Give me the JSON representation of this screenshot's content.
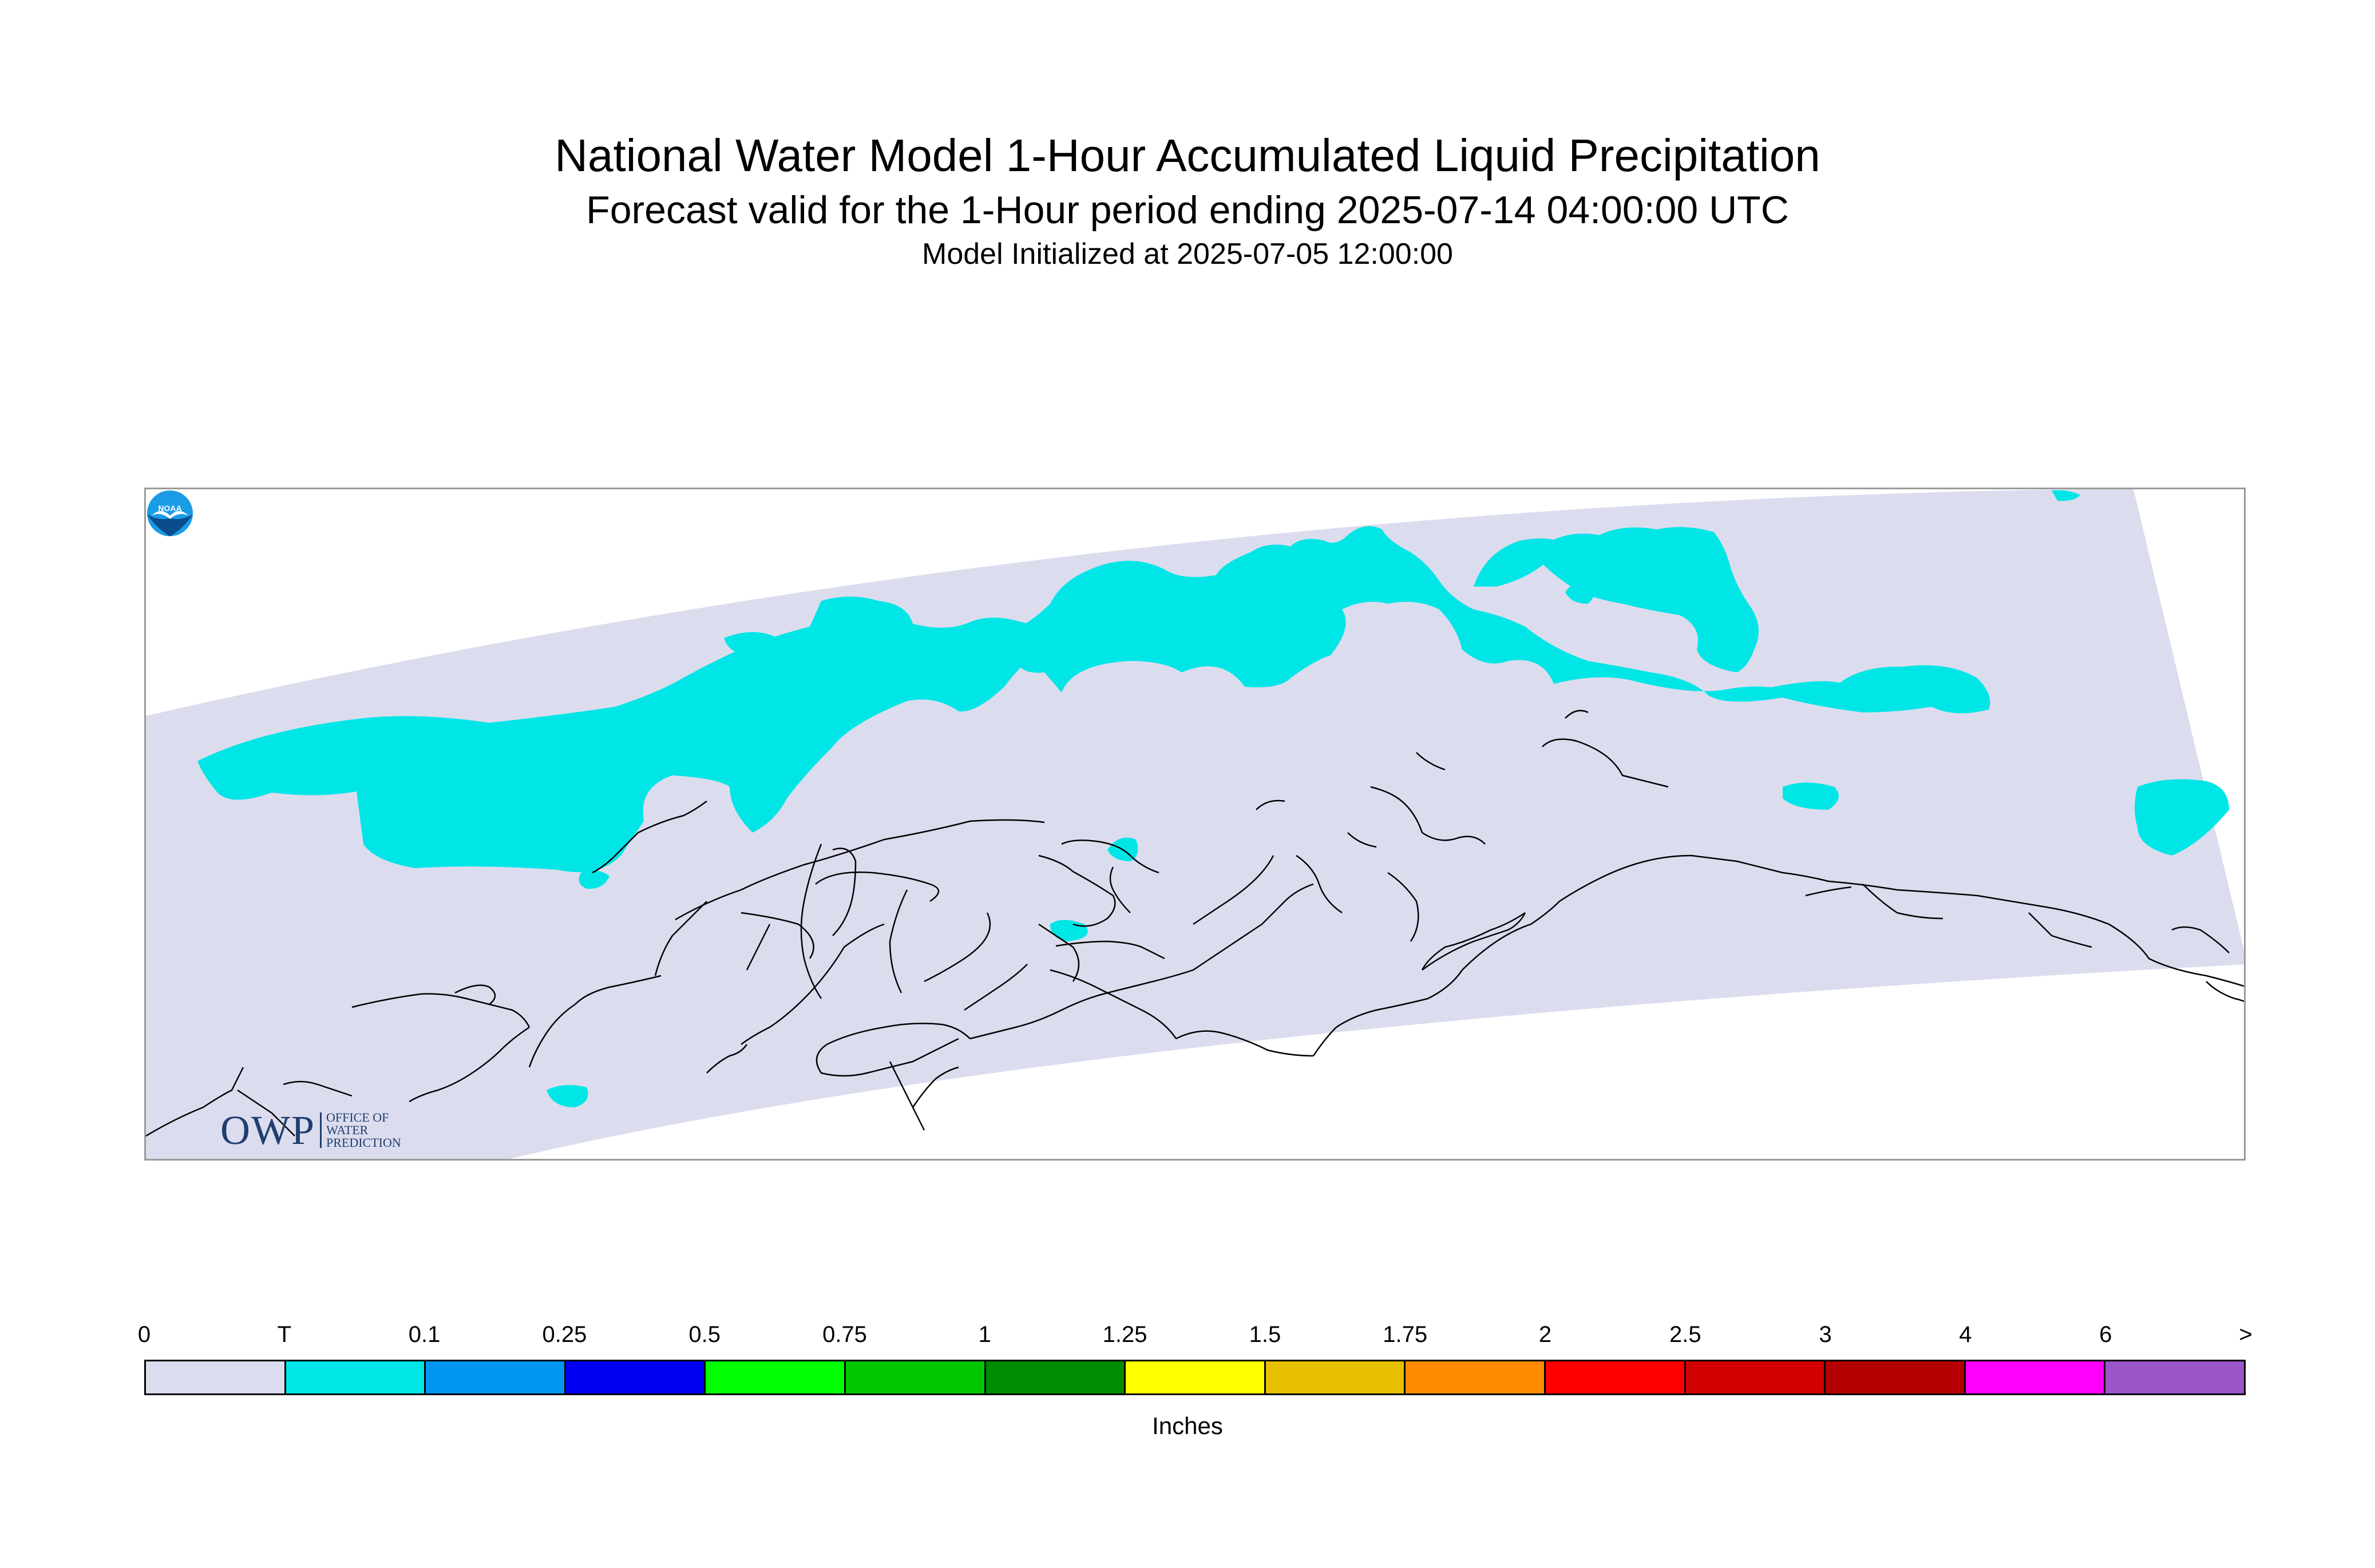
{
  "title": "National Water Model 1-Hour Accumulated Liquid Precipitation",
  "subtitle": "Forecast valid for the 1-Hour period ending 2025-07-14 04:00:00 UTC",
  "init_line": "Model Initialized at 2025-07-05 12:00:00",
  "map": {
    "region": "Alaska",
    "domain_color": "#dcdcef",
    "precip_color": "#00e6e6",
    "coastline_color": "#000000"
  },
  "logos": {
    "owp_big": "OWP",
    "owp_small": [
      "OFFICE OF",
      "WATER",
      "PREDICTION"
    ],
    "noaa": "NOAA"
  },
  "legend": {
    "units": "Inches",
    "ticks": [
      "0",
      "T",
      "0.1",
      "0.25",
      "0.5",
      "0.75",
      "1",
      "1.25",
      "1.5",
      "1.75",
      "2",
      "2.5",
      "3",
      "4",
      "6",
      ">"
    ],
    "colors": [
      "#dcdcef",
      "#00e6e6",
      "#0096f0",
      "#0000f0",
      "#00ff00",
      "#00c800",
      "#008c00",
      "#ffff00",
      "#e6c000",
      "#ff8c00",
      "#ff0000",
      "#d20000",
      "#b40000",
      "#ff00ff",
      "#9a55c8"
    ]
  }
}
